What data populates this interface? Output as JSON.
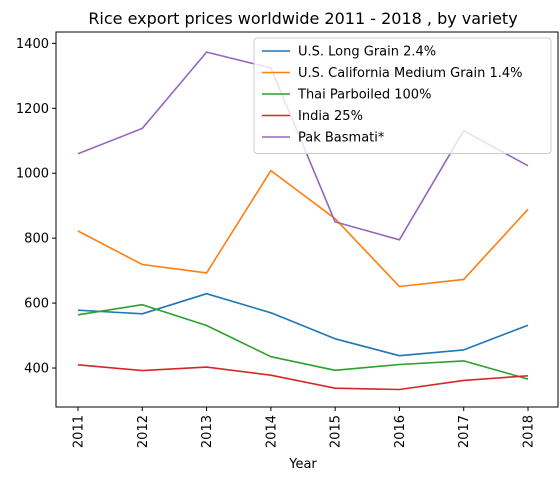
{
  "chart_data": {
    "type": "line",
    "title": "Rice export prices worldwide 2011 - 2018 , by variety",
    "xlabel": "Year",
    "ylabel": "",
    "categories": [
      "2011",
      "2012",
      "2013",
      "2014",
      "2015",
      "2016",
      "2017",
      "2018"
    ],
    "ylim": [
      280,
      1435
    ],
    "yticks": [
      400,
      600,
      800,
      1000,
      1200,
      1400
    ],
    "grid": false,
    "legend_position": "top-right",
    "series": [
      {
        "name": "U.S. Long Grain 2.4%",
        "color": "#1f77b4",
        "values": [
          578,
          567,
          629,
          570,
          490,
          438,
          456,
          532
        ]
      },
      {
        "name": "U.S. California Medium Grain 1.4%",
        "color": "#ff7f0e",
        "values": [
          822,
          719,
          693,
          1008,
          860,
          651,
          673,
          889
        ]
      },
      {
        "name": "Thai Parboiled 100%",
        "color": "#2ca02c",
        "values": [
          564,
          595,
          531,
          435,
          393,
          411,
          422,
          366
        ]
      },
      {
        "name": "India 25%",
        "color": "#d62728",
        "values": [
          410,
          392,
          403,
          378,
          338,
          334,
          362,
          376
        ]
      },
      {
        "name": "Pak Basmati*",
        "color": "#9467bd",
        "values": [
          1060,
          1138,
          1373,
          1324,
          850,
          795,
          1131,
          1023
        ]
      }
    ]
  }
}
